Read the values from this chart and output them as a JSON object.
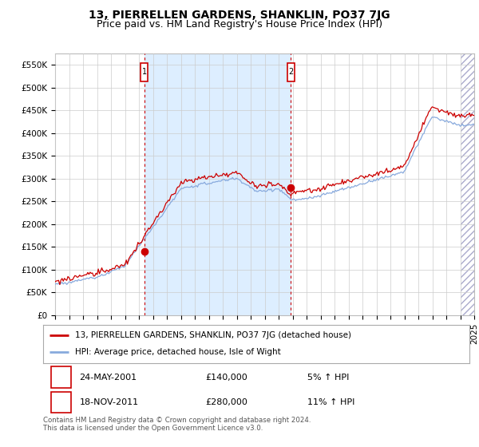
{
  "title": "13, PIERRELLEN GARDENS, SHANKLIN, PO37 7JG",
  "subtitle": "Price paid vs. HM Land Registry's House Price Index (HPI)",
  "ylim": [
    0,
    575000
  ],
  "yticks": [
    0,
    50000,
    100000,
    150000,
    200000,
    250000,
    300000,
    350000,
    400000,
    450000,
    500000,
    550000
  ],
  "ytick_labels": [
    "£0",
    "£50K",
    "£100K",
    "£150K",
    "£200K",
    "£250K",
    "£300K",
    "£350K",
    "£400K",
    "£450K",
    "£500K",
    "£550K"
  ],
  "x_start_year": 1995,
  "x_end_year": 2025,
  "background_color": "#ffffff",
  "plot_bg_color": "#ffffff",
  "grid_color": "#cccccc",
  "shading_color": "#ddeeff",
  "red_color": "#cc0000",
  "blue_color": "#88aadd",
  "sale1_year": 2001.38,
  "sale1_price": 140000,
  "sale2_year": 2011.88,
  "sale2_price": 280000,
  "legend_label_red": "13, PIERRELLEN GARDENS, SHANKLIN, PO37 7JG (detached house)",
  "legend_label_blue": "HPI: Average price, detached house, Isle of Wight",
  "annotation1_date": "24-MAY-2001",
  "annotation1_price": "£140,000",
  "annotation1_hpi": "5% ↑ HPI",
  "annotation2_date": "18-NOV-2011",
  "annotation2_price": "£280,000",
  "annotation2_hpi": "11% ↑ HPI",
  "footer": "Contains HM Land Registry data © Crown copyright and database right 2024.\nThis data is licensed under the Open Government Licence v3.0.",
  "title_fontsize": 10,
  "subtitle_fontsize": 9,
  "tick_fontsize": 7.5,
  "legend_fontsize": 7.5,
  "ann_fontsize": 8
}
